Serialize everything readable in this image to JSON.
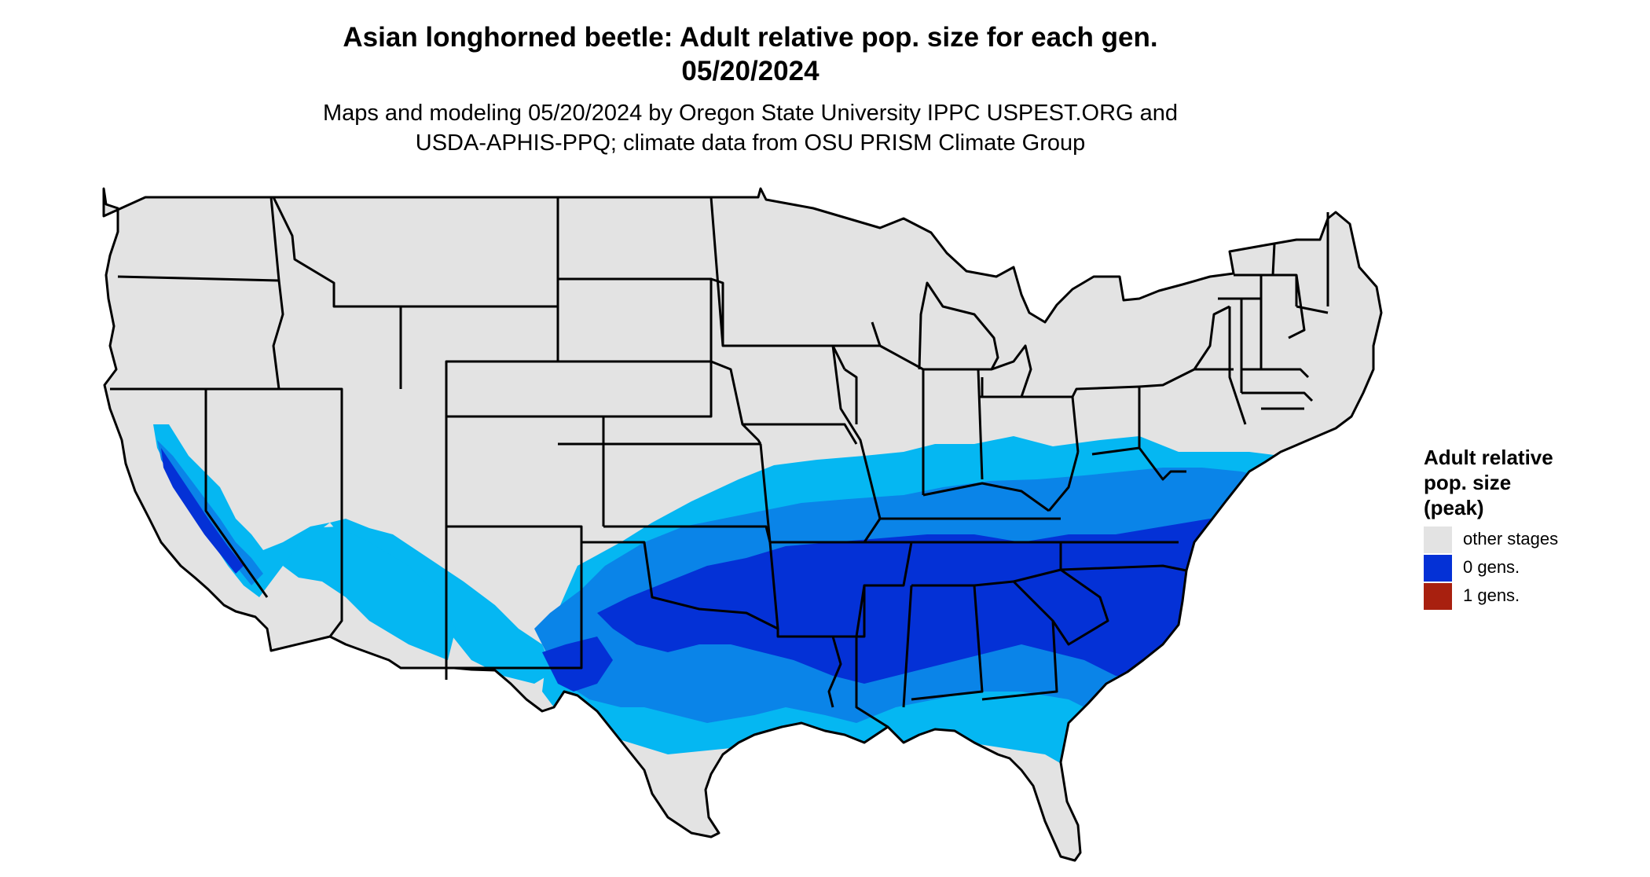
{
  "title": {
    "line1": "Asian longhorned beetle: Adult relative pop. size for each gen.",
    "line2": "05/20/2024"
  },
  "subtitle": {
    "line1": "Maps and modeling 05/20/2024 by Oregon State University IPPC USPEST.ORG and",
    "line2": "USDA-APHIS-PPQ; climate data from OSU PRISM Climate Group"
  },
  "legend": {
    "title_lines": [
      "Adult relative",
      "pop. size",
      "(peak)"
    ],
    "items": [
      {
        "label": "other stages",
        "color": "#e3e3e3"
      },
      {
        "label": "0 gens.",
        "color": "#0431d6"
      },
      {
        "label": "1 gens.",
        "color": "#a8200f"
      }
    ]
  },
  "map_colors": {
    "background": "#e3e3e3",
    "light_blue": "#05b7f2",
    "mid_blue": "#0a84e8",
    "dark_blue": "#0431d6",
    "borders": "#000000"
  }
}
